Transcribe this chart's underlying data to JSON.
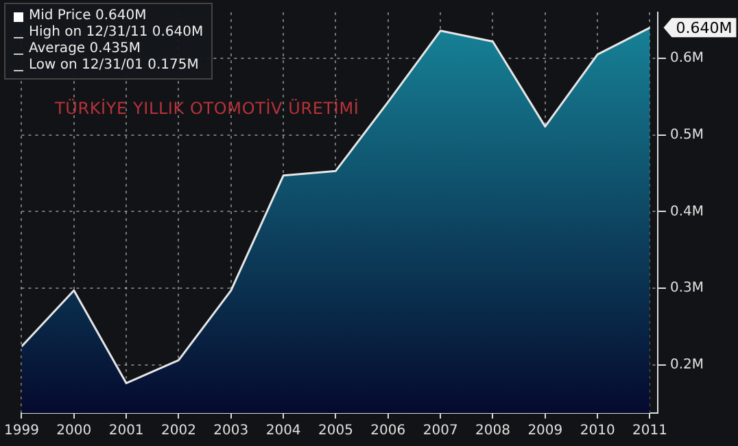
{
  "chart_data": {
    "type": "area",
    "title": "TÜRKİYE YILLIK OTOMOTİV ÜRETİMİ",
    "x": [
      1999,
      2000,
      2001,
      2002,
      2003,
      2004,
      2005,
      2006,
      2007,
      2008,
      2009,
      2010,
      2011
    ],
    "series": [
      {
        "color": "#17869a",
        "values": [
          0.224,
          0.297,
          0.176,
          0.206,
          0.297,
          0.447,
          0.453,
          0.543,
          0.636,
          0.622,
          0.511,
          0.605,
          0.64
        ]
      }
    ],
    "xlim": [
      1999,
      2011.15
    ],
    "xticks": [
      1999,
      2000,
      2001,
      2002,
      2003,
      2004,
      2005,
      2006,
      2007,
      2008,
      2009,
      2010,
      2011
    ],
    "ylim": [
      0.137,
      0.66
    ],
    "yticks": [
      {
        "value": 0.2,
        "label": "0.2M"
      },
      {
        "value": 0.3,
        "label": "0.3M"
      },
      {
        "value": 0.4,
        "label": "0.4M"
      },
      {
        "value": 0.5,
        "label": "0.5M"
      },
      {
        "value": 0.6,
        "label": "0.6M"
      }
    ],
    "grid": true,
    "annotations": [
      "Mid Price 0.640M",
      "High on 12/31/11 0.640M",
      "Average 0.435M",
      "Low on 12/31/01 0.175M",
      {
        "text": "0.640M",
        "x": 2011,
        "y": 0.64
      }
    ]
  }
}
